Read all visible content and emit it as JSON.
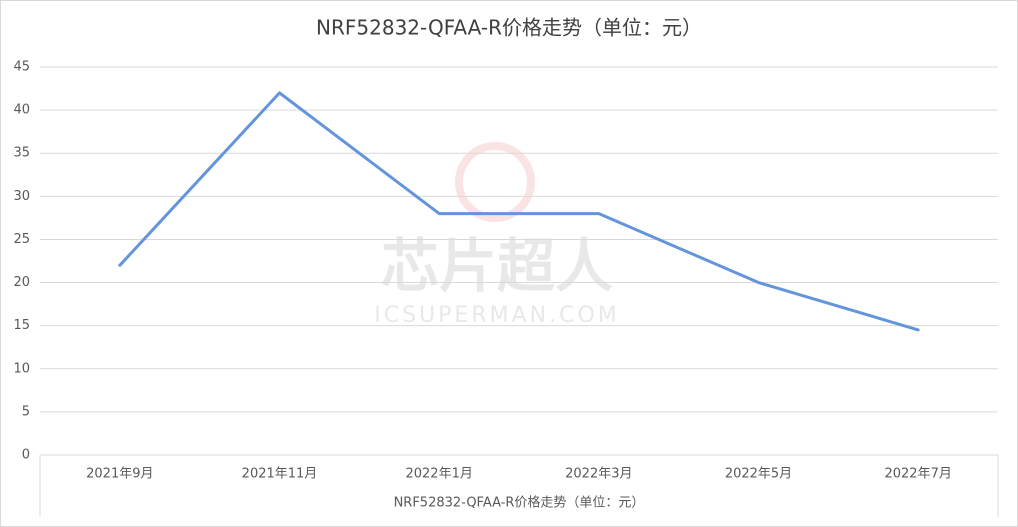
{
  "chart_data": {
    "type": "line",
    "title": "NRF52832-QFAA-R价格走势（单位：元）",
    "x_label": "NRF52832-QFAA-R价格走势（单位：元）",
    "watermark": "芯片超人",
    "watermark_url": "ICSUPERMAN.COM",
    "categories": [
      "2021年9月",
      "2021年11月",
      "2022年1月",
      "2022年3月",
      "2022年5月",
      "2022年7月"
    ],
    "values": [
      22,
      42,
      28,
      28,
      20,
      14.5
    ],
    "color": "#6495dc",
    "ylim": [
      0,
      45
    ],
    "yticks": [
      0,
      5,
      10,
      15,
      20,
      25,
      30,
      35,
      40,
      45
    ],
    "grid": true
  }
}
